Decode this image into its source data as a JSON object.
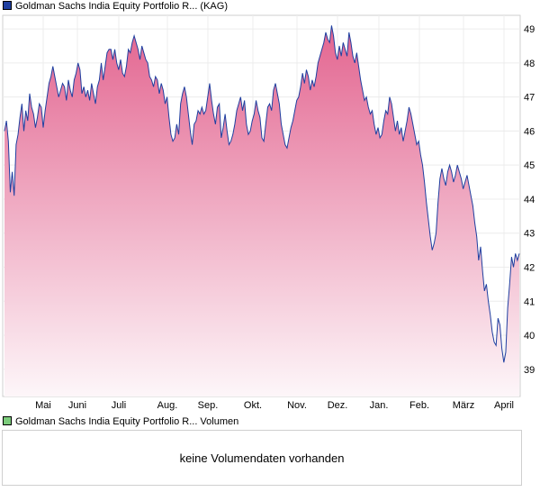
{
  "legend": {
    "price_label": "Goldman Sachs India Equity Portfolio R... (KAG)",
    "price_color": "#1f3fa0",
    "volume_label": "Goldman Sachs India Equity Portfolio R... Volumen",
    "volume_color": "#7ccc7c"
  },
  "volume_panel": {
    "message": "keine Volumendaten vorhanden"
  },
  "chart_data": {
    "type": "area",
    "title": "",
    "xlabel": "",
    "ylabel": "",
    "x_tick_labels": [
      "Mai",
      "Juni",
      "Juli",
      "Aug.",
      "Sep.",
      "Okt.",
      "Nov.",
      "Dez.",
      "Jan.",
      "Feb.",
      "März",
      "April"
    ],
    "y_ticks": [
      39,
      40,
      41,
      42,
      43,
      44,
      45,
      46,
      47,
      48,
      49
    ],
    "ylim": [
      38.2,
      49.4
    ],
    "grid": true,
    "line_color": "#1f3fa0",
    "fill_top_color": "#e36590",
    "fill_bottom_color": "#fdf6f9",
    "series": [
      {
        "values": [
          46.0,
          46.3,
          45.7,
          44.2,
          44.8,
          44.1,
          45.6,
          45.9,
          46.4,
          46.8,
          46.0,
          46.6,
          46.3,
          47.1,
          46.7,
          46.5,
          46.1,
          46.4,
          46.8,
          46.7,
          46.1,
          46.6,
          47.0,
          47.4,
          47.6,
          47.9,
          47.6,
          47.3,
          47.0,
          47.2,
          47.4,
          47.3,
          46.9,
          47.5,
          47.2,
          47.0,
          47.5,
          47.7,
          48.0,
          47.8,
          47.1,
          47.3,
          47.0,
          47.2,
          46.9,
          47.4,
          47.1,
          46.8,
          47.3,
          47.5,
          48.0,
          47.5,
          47.9,
          48.3,
          48.4,
          48.4,
          48.1,
          48.4,
          48.0,
          47.8,
          48.1,
          47.7,
          47.6,
          47.9,
          48.4,
          48.3,
          48.6,
          48.8,
          48.6,
          48.4,
          48.1,
          48.5,
          48.3,
          48.1,
          48.0,
          47.6,
          47.5,
          47.3,
          47.6,
          47.5,
          47.1,
          47.4,
          47.2,
          46.8,
          47.0,
          46.4,
          45.9,
          45.7,
          45.8,
          46.2,
          45.9,
          46.8,
          47.1,
          47.3,
          47.0,
          46.5,
          46.0,
          45.6,
          46.2,
          46.3,
          46.6,
          46.5,
          46.7,
          46.5,
          46.6,
          47.0,
          47.4,
          46.9,
          46.5,
          46.2,
          46.7,
          46.8,
          45.8,
          46.1,
          46.5,
          46.0,
          45.6,
          45.7,
          45.9,
          46.2,
          46.6,
          46.8,
          47.0,
          46.6,
          46.9,
          46.2,
          45.9,
          46.0,
          46.3,
          46.5,
          46.9,
          46.6,
          46.4,
          45.8,
          45.7,
          46.2,
          46.7,
          46.8,
          46.6,
          47.2,
          47.4,
          47.1,
          46.8,
          46.2,
          45.9,
          45.6,
          45.5,
          45.8,
          46.1,
          46.3,
          46.6,
          46.9,
          47.0,
          47.3,
          47.7,
          47.4,
          47.8,
          47.6,
          47.2,
          47.5,
          47.3,
          47.6,
          48.0,
          48.2,
          48.4,
          48.6,
          48.9,
          48.7,
          48.6,
          49.1,
          48.8,
          48.3,
          48.1,
          48.5,
          48.2,
          48.6,
          48.4,
          48.2,
          48.9,
          48.6,
          48.2,
          48.0,
          48.3,
          47.9,
          47.5,
          47.2,
          46.9,
          47.0,
          46.7,
          46.5,
          46.6,
          46.2,
          45.9,
          46.1,
          45.8,
          45.9,
          46.3,
          46.6,
          46.5,
          47.0,
          46.8,
          46.4,
          46.0,
          46.3,
          45.9,
          46.1,
          45.7,
          46.0,
          46.3,
          46.7,
          46.5,
          46.2,
          45.9,
          45.6,
          45.7,
          45.3,
          45.0,
          44.5,
          43.9,
          43.4,
          42.9,
          42.5,
          42.7,
          43.0,
          43.9,
          44.6,
          44.9,
          44.6,
          44.4,
          44.8,
          45.0,
          44.8,
          44.5,
          44.7,
          45.0,
          44.8,
          44.6,
          44.3,
          44.5,
          44.7,
          44.4,
          44.1,
          43.8,
          43.3,
          42.9,
          42.2,
          42.6,
          41.9,
          41.3,
          41.5,
          41.0,
          40.6,
          40.1,
          39.8,
          39.7,
          40.5,
          40.3,
          39.6,
          39.2,
          39.5,
          40.8,
          41.5,
          42.3,
          42.0,
          42.4,
          42.2,
          42.4
        ]
      }
    ]
  }
}
